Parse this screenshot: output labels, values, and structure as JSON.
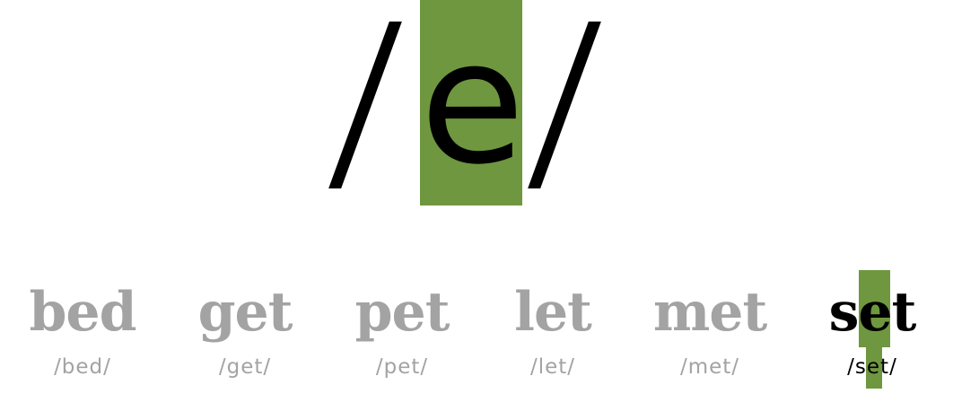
{
  "phoneme": {
    "symbol": "e",
    "highlight_color": "#6f973f"
  },
  "words": [
    {
      "word": "bed",
      "ipa": "/bed/",
      "active": false
    },
    {
      "word": "get",
      "ipa": "/get/",
      "active": false
    },
    {
      "word": "pet",
      "ipa": "/pet/",
      "active": false
    },
    {
      "word": "let",
      "ipa": "/let/",
      "active": false
    },
    {
      "word": "met",
      "ipa": "/met/",
      "active": false
    },
    {
      "word": "set",
      "ipa": "/set/",
      "active": true
    }
  ],
  "colors": {
    "inactive_text": "#a3a3a3",
    "active_text": "#000000",
    "highlight": "#6f973f"
  }
}
